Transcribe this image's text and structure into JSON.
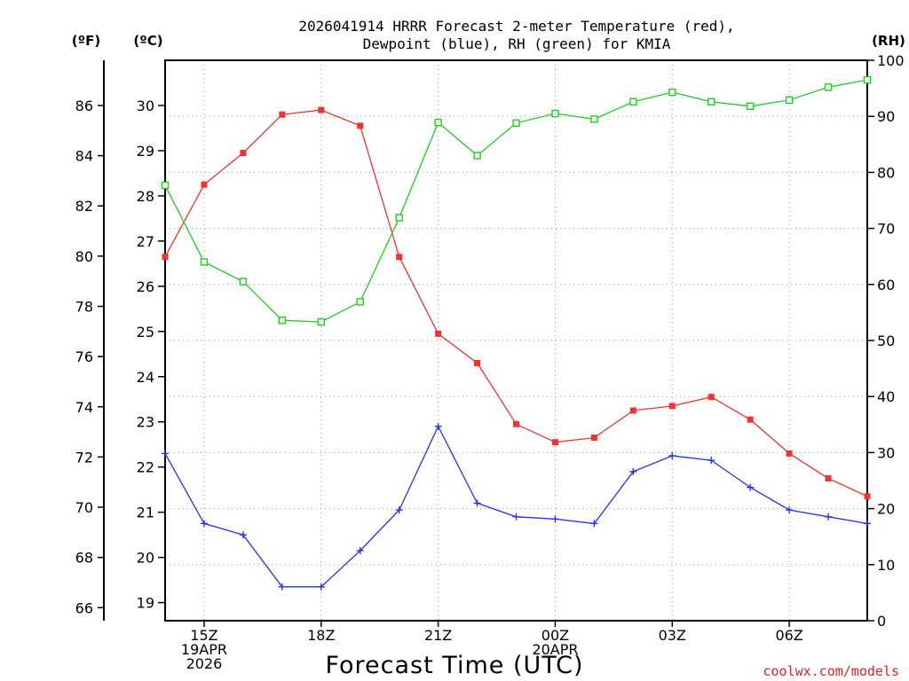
{
  "chart_data": {
    "type": "line",
    "title_line1": "2026041914 HRRR Forecast 2-meter Temperature (red),",
    "title_line2": "Dewpoint (blue), RH (green) for KMIA",
    "xlabel": "Forecast Time (UTC)",
    "credit": "coolwx.com/models",
    "unit_labels": {
      "f": "(ºF)",
      "c": "(ºC)",
      "rh": "(RH)"
    },
    "x": [
      14,
      15,
      16,
      17,
      18,
      19,
      20,
      21,
      22,
      23,
      24,
      25,
      26,
      27,
      28,
      29,
      30,
      31,
      32
    ],
    "xlim": [
      14,
      32
    ],
    "x_ticks": [
      {
        "x": 15,
        "lines": [
          "15Z",
          "19APR",
          "2026"
        ]
      },
      {
        "x": 18,
        "lines": [
          "18Z"
        ]
      },
      {
        "x": 21,
        "lines": [
          "21Z"
        ]
      },
      {
        "x": 24,
        "lines": [
          "00Z",
          "20APR"
        ]
      },
      {
        "x": 27,
        "lines": [
          "03Z"
        ]
      },
      {
        "x": 30,
        "lines": [
          "06Z"
        ]
      }
    ],
    "c_axis": {
      "ylim": [
        18.6,
        31.0
      ],
      "ticks": [
        "19",
        "20",
        "21",
        "22",
        "23",
        "24",
        "25",
        "26",
        "27",
        "28",
        "29",
        "30"
      ]
    },
    "f_axis": {
      "ylim": [
        65.48,
        87.8
      ],
      "ticks": [
        "66",
        "68",
        "70",
        "72",
        "74",
        "76",
        "78",
        "80",
        "82",
        "84",
        "86"
      ]
    },
    "rh_axis": {
      "ylim": [
        0,
        100
      ],
      "ticks": [
        "0",
        "10",
        "20",
        "30",
        "40",
        "50",
        "60",
        "70",
        "80",
        "90",
        "100"
      ]
    },
    "series": [
      {
        "name": "Temperature",
        "axis": "c",
        "color": "#ee3333",
        "marker": "filled-square",
        "values": [
          26.65,
          28.25,
          28.95,
          29.8,
          29.9,
          29.55,
          26.65,
          24.95,
          24.3,
          22.95,
          22.55,
          22.65,
          23.25,
          23.35,
          23.55,
          23.05,
          22.3,
          21.75,
          21.35
        ]
      },
      {
        "name": "Dewpoint",
        "axis": "c",
        "color": "#2233ee",
        "marker": "plus",
        "values": [
          22.3,
          20.75,
          20.5,
          19.35,
          19.35,
          20.15,
          21.05,
          22.9,
          21.2,
          20.9,
          20.85,
          20.75,
          21.9,
          22.25,
          22.15,
          21.55,
          21.05,
          20.9,
          20.75
        ]
      },
      {
        "name": "RH",
        "axis": "rh",
        "color": "#22cc22",
        "marker": "open-square",
        "values": [
          77.7,
          64.0,
          60.5,
          53.6,
          53.3,
          56.9,
          71.9,
          88.9,
          83.0,
          88.8,
          90.5,
          89.5,
          92.6,
          94.3,
          92.6,
          91.8,
          92.9,
          95.2,
          96.5
        ]
      }
    ]
  }
}
